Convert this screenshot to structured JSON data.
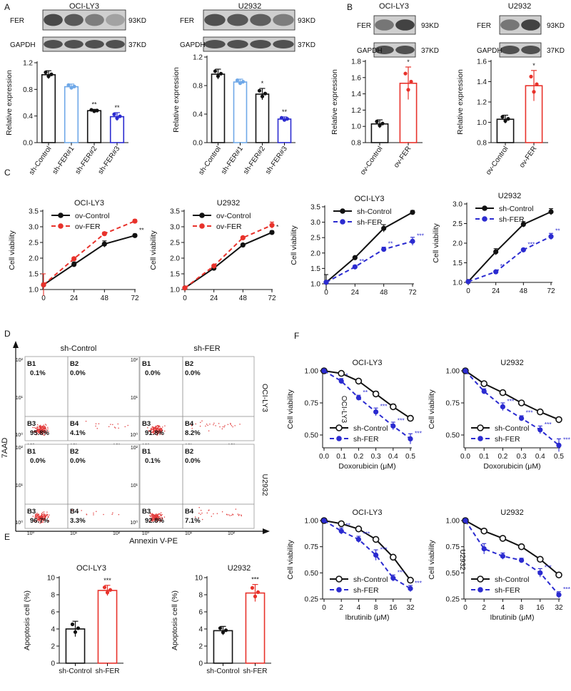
{
  "panels": {
    "A": {
      "letter": "A",
      "blots": [
        {
          "title": "OCI-LY3",
          "fer_label": "FER",
          "gapdh_label": "GAPDH",
          "fer_kd": "93KD",
          "gapdh_kd": "37KD"
        },
        {
          "title": "U2932",
          "fer_label": "FER",
          "gapdh_label": "GAPDH",
          "fer_kd": "93KD",
          "gapdh_kd": "37KD"
        }
      ]
    },
    "B": {
      "letter": "B",
      "blots": [
        {
          "title": "OCI-LY3",
          "fer_label": "FER",
          "gapdh_label": "GAPDH",
          "fer_kd": "93KD",
          "gapdh_kd": "37KD"
        },
        {
          "title": "U2932",
          "fer_label": "FER",
          "gapdh_label": "GAPDH",
          "fer_kd": "93KD",
          "gapdh_kd": "37KD"
        }
      ]
    },
    "C": {
      "letter": "C"
    },
    "D": {
      "letter": "D",
      "col_titles": [
        "sh-Control",
        "sh-FER"
      ],
      "row_labels": [
        "OCI-LY3",
        "U2932"
      ],
      "y_axis_label": "7AAD",
      "x_axis_label": "Annexin V-PE",
      "tick_labels": [
        "10⁰",
        "10¹",
        "10²"
      ],
      "quadrants": [
        {
          "cell": "OCI-LY3 sh-Control",
          "B1": "0.1%",
          "B2": "0.0%",
          "B3": "95.8%",
          "B4": "4.1%"
        },
        {
          "cell": "OCI-LY3 sh-FER",
          "B1": "0.0%",
          "B2": "0.0%",
          "B3": "91.8%",
          "B4": "8.2%"
        },
        {
          "cell": "U2932 sh-Control",
          "B1": "0.0%",
          "B2": "0.0%",
          "B3": "96.7%",
          "B4": "3.3%"
        },
        {
          "cell": "U2932 sh-FER",
          "B1": "0.1%",
          "B2": "0.0%",
          "B3": "92.8%",
          "B4": "7.1%"
        }
      ],
      "quad_names": [
        "B1",
        "B2",
        "B3",
        "B4"
      ]
    },
    "E": {
      "letter": "E"
    },
    "F": {
      "letter": "F"
    }
  },
  "colors": {
    "black": "#111111",
    "lightblue": "#6fa8e8",
    "blue": "#2b2bd0",
    "red": "#e8322b",
    "dots": "#e23a3a",
    "blot_bg": "#cfcfcf",
    "band": "#3a3a3a"
  },
  "chart_data": [
    {
      "id": "A1",
      "type": "bar",
      "title": "",
      "ylabel": "Relative expression",
      "ylim": [
        0,
        1.2
      ],
      "yticks": [
        "0.0",
        "0.4",
        "0.8",
        "1.2"
      ],
      "categories": [
        "sh-Control",
        "sh-FER#1",
        "sh-FER#2",
        "sh-FER#3"
      ],
      "values": [
        1.02,
        0.84,
        0.48,
        0.39
      ],
      "errors": [
        0.06,
        0.04,
        0.02,
        0.06
      ],
      "sig": [
        "",
        "",
        "**",
        "**"
      ],
      "colors": [
        "#111111",
        "#6fa8e8",
        "#111111",
        "#2b2bd0"
      ]
    },
    {
      "id": "A2",
      "type": "bar",
      "title": "",
      "ylabel": "Relative expression",
      "ylim": [
        0,
        1.2
      ],
      "yticks": [
        "0.0",
        "0.4",
        "0.8",
        "1.2"
      ],
      "categories": [
        "sh-Control",
        "sh-FER#1",
        "sh-FER#2",
        "sh-FER#3"
      ],
      "values": [
        0.96,
        0.85,
        0.68,
        0.33
      ],
      "errors": [
        0.07,
        0.04,
        0.08,
        0.03
      ],
      "sig": [
        "",
        "",
        "*",
        "**"
      ],
      "colors": [
        "#111111",
        "#6fa8e8",
        "#111111",
        "#2b2bd0"
      ]
    },
    {
      "id": "B1",
      "type": "bar",
      "title": "",
      "ylabel": "Relative expression",
      "ylim": [
        0.8,
        1.8
      ],
      "yticks": [
        "0.8",
        "1.0",
        "1.2",
        "1.4",
        "1.6",
        "1.8"
      ],
      "categories": [
        "ov-Control",
        "ov-FER"
      ],
      "values": [
        1.03,
        1.53
      ],
      "errors": [
        0.05,
        0.2
      ],
      "sig": [
        "",
        "*"
      ],
      "colors": [
        "#111111",
        "#e8322b"
      ]
    },
    {
      "id": "B2",
      "type": "bar",
      "title": "",
      "ylabel": "Relative expression",
      "ylim": [
        0.8,
        1.6
      ],
      "yticks": [
        "0.8",
        "1.0",
        "1.2",
        "1.4",
        "1.6"
      ],
      "categories": [
        "ov-Control",
        "ov-FER"
      ],
      "values": [
        1.03,
        1.36
      ],
      "errors": [
        0.04,
        0.15
      ],
      "sig": [
        "",
        "*"
      ],
      "colors": [
        "#111111",
        "#e8322b"
      ]
    },
    {
      "id": "C1",
      "type": "line",
      "title": "OCI-LY3",
      "xlabel": "",
      "ylabel": "Cell viability",
      "x": [
        0,
        24,
        48,
        72
      ],
      "xticks": [
        "0",
        "24",
        "48",
        "72"
      ],
      "ylim": [
        1.0,
        3.5
      ],
      "yticks": [
        "1.0",
        "1.5",
        "2.0",
        "2.5",
        "3.0",
        "3.5"
      ],
      "legend_pos": "top-left",
      "series": [
        {
          "name": "ov-Control",
          "values": [
            1.15,
            1.8,
            2.45,
            2.72
          ],
          "errors": [
            0.05,
            0.08,
            0.1,
            0.05
          ],
          "color": "#111111",
          "dash": false,
          "marker": "filled",
          "sig": [
            "",
            "",
            "",
            "**"
          ]
        },
        {
          "name": "ov-FER",
          "values": [
            1.15,
            1.98,
            2.78,
            3.18
          ],
          "errors": [
            0.35,
            0.05,
            0.05,
            0.05
          ],
          "color": "#e8322b",
          "dash": true,
          "marker": "filled",
          "sig": [
            "",
            "",
            "",
            ""
          ]
        }
      ]
    },
    {
      "id": "C2",
      "type": "line",
      "title": "U2932",
      "xlabel": "",
      "ylabel": "Cell viability",
      "x": [
        0,
        24,
        48,
        72
      ],
      "xticks": [
        "0",
        "24",
        "48",
        "72"
      ],
      "ylim": [
        1.0,
        3.5
      ],
      "yticks": [
        "1.0",
        "1.5",
        "2.0",
        "2.5",
        "3.0",
        "3.5"
      ],
      "legend_pos": "top-left",
      "series": [
        {
          "name": "ov-Control",
          "values": [
            1.05,
            1.68,
            2.42,
            2.82
          ],
          "errors": [
            0.03,
            0.04,
            0.04,
            0.05
          ],
          "color": "#111111",
          "dash": false,
          "marker": "filled",
          "sig": [
            "",
            "",
            "",
            "*"
          ]
        },
        {
          "name": "ov-FER",
          "values": [
            1.05,
            1.75,
            2.65,
            3.05
          ],
          "errors": [
            0.03,
            0.04,
            0.04,
            0.1
          ],
          "color": "#e8322b",
          "dash": true,
          "marker": "filled",
          "sig": [
            "",
            "",
            "",
            ""
          ]
        }
      ]
    },
    {
      "id": "C3",
      "type": "line",
      "title": "OCI-LY3",
      "xlabel": "",
      "ylabel": "Cell viability",
      "x": [
        0,
        24,
        48,
        72
      ],
      "xticks": [
        "0",
        "24",
        "48",
        "72"
      ],
      "ylim": [
        1.0,
        3.5
      ],
      "yticks": [
        "1.0",
        "1.5",
        "2.0",
        "2.5",
        "3.0",
        "3.5"
      ],
      "legend_pos": "top-left",
      "series": [
        {
          "name": "sh-Control",
          "values": [
            1.05,
            1.85,
            2.8,
            3.32
          ],
          "errors": [
            0.25,
            0.03,
            0.12,
            0.06
          ],
          "color": "#111111",
          "dash": false,
          "marker": "filled",
          "sig": [
            "",
            "",
            "",
            ""
          ]
        },
        {
          "name": "sh-FER",
          "values": [
            1.05,
            1.55,
            2.12,
            2.38
          ],
          "errors": [
            0.03,
            0.05,
            0.07,
            0.13
          ],
          "color": "#2b2bd0",
          "dash": true,
          "marker": "filled",
          "sig": [
            "",
            "**",
            "**",
            "***"
          ]
        }
      ]
    },
    {
      "id": "C4",
      "type": "line",
      "title": "U2932",
      "xlabel": "",
      "ylabel": "Cell viability",
      "x": [
        0,
        24,
        48,
        72
      ],
      "xticks": [
        "0",
        "24",
        "48",
        "72"
      ],
      "ylim": [
        1.0,
        3.0
      ],
      "yticks": [
        "1.0",
        "1.5",
        "2.0",
        "2.5",
        "3.0"
      ],
      "legend_pos": "top-left",
      "series": [
        {
          "name": "sh-Control",
          "values": [
            1.02,
            1.78,
            2.48,
            2.8
          ],
          "errors": [
            0.02,
            0.08,
            0.07,
            0.08
          ],
          "color": "#111111",
          "dash": false,
          "marker": "filled",
          "sig": [
            "",
            "",
            "",
            ""
          ]
        },
        {
          "name": "sh-FER",
          "values": [
            1.02,
            1.27,
            1.83,
            2.17
          ],
          "errors": [
            0.02,
            0.03,
            0.03,
            0.08
          ],
          "color": "#2b2bd0",
          "dash": true,
          "marker": "filled",
          "sig": [
            "",
            "**",
            "***",
            "**"
          ]
        }
      ]
    },
    {
      "id": "E1",
      "type": "bar",
      "title": "OCI-LY3",
      "ylabel": "Apoptosis cell (%)",
      "ylim": [
        0,
        10
      ],
      "yticks": [
        "0",
        "2",
        "4",
        "6",
        "8",
        "10"
      ],
      "categories": [
        "sh-Control",
        "sh-FER"
      ],
      "values": [
        4.0,
        8.5
      ],
      "errors": [
        0.9,
        0.6
      ],
      "sig": [
        "",
        "***"
      ],
      "colors": [
        "#111111",
        "#e8322b"
      ]
    },
    {
      "id": "E2",
      "type": "bar",
      "title": "U2932",
      "ylabel": "Apoptosis cell (%)",
      "ylim": [
        0,
        10
      ],
      "yticks": [
        "0",
        "2",
        "4",
        "6",
        "8",
        "10"
      ],
      "categories": [
        "sh-Control",
        "sh-FER"
      ],
      "values": [
        3.8,
        8.2
      ],
      "errors": [
        0.5,
        1.0
      ],
      "sig": [
        "",
        "***"
      ],
      "colors": [
        "#111111",
        "#e8322b"
      ]
    },
    {
      "id": "F1",
      "type": "line",
      "title": "OCI-LY3",
      "xlabel": "Doxorubicin (μM)",
      "ylabel": "Cell viability",
      "side_label": "OCI-LY3",
      "x": [
        0,
        0.1,
        0.2,
        0.3,
        0.4,
        0.5
      ],
      "xticks": [
        "0.0",
        "0.1",
        "0.2",
        "0.3",
        "0.4",
        "0.5"
      ],
      "ylim": [
        0.4,
        1.0
      ],
      "yticks": [
        "0.50",
        "0.75",
        "1.00"
      ],
      "legend_pos": "bottom-left",
      "series": [
        {
          "name": "sh-Control",
          "values": [
            1.0,
            0.98,
            0.92,
            0.82,
            0.72,
            0.63
          ],
          "errors": [
            0,
            0.01,
            0.01,
            0.02,
            0.02,
            0.02
          ],
          "color": "#111111",
          "dash": false,
          "marker": "open",
          "sig": [
            "",
            "",
            "",
            "",
            "",
            ""
          ]
        },
        {
          "name": "sh-FER",
          "values": [
            1.0,
            0.92,
            0.79,
            0.68,
            0.57,
            0.47
          ],
          "errors": [
            0,
            0.02,
            0.02,
            0.03,
            0.03,
            0.04
          ],
          "color": "#2b2bd0",
          "dash": true,
          "marker": "filled",
          "sig": [
            "",
            "*",
            "**",
            "***",
            "***",
            "***"
          ]
        }
      ]
    },
    {
      "id": "F2",
      "type": "line",
      "title": "U2932",
      "xlabel": "Doxorubicin (μM)",
      "ylabel": "Cell viability",
      "side_label": "",
      "x": [
        0,
        0.1,
        0.2,
        0.3,
        0.4,
        0.5
      ],
      "xticks": [
        "0.0",
        "0.1",
        "0.2",
        "0.3",
        "0.4",
        "0.5"
      ],
      "ylim": [
        0.4,
        1.0
      ],
      "yticks": [
        "0.50",
        "0.75",
        "1.00"
      ],
      "legend_pos": "bottom-left",
      "series": [
        {
          "name": "sh-Control",
          "values": [
            1.0,
            0.9,
            0.83,
            0.75,
            0.68,
            0.62
          ],
          "errors": [
            0,
            0.01,
            0.01,
            0.01,
            0.01,
            0.01
          ],
          "color": "#111111",
          "dash": false,
          "marker": "open",
          "sig": [
            "",
            "",
            "",
            "",
            "",
            ""
          ]
        },
        {
          "name": "sh-FER",
          "values": [
            1.0,
            0.84,
            0.72,
            0.63,
            0.54,
            0.42
          ],
          "errors": [
            0,
            0.02,
            0.03,
            0.02,
            0.03,
            0.05
          ],
          "color": "#2b2bd0",
          "dash": true,
          "marker": "filled",
          "sig": [
            "",
            "",
            "***",
            "***",
            "***",
            "***"
          ]
        }
      ]
    },
    {
      "id": "F3",
      "type": "line",
      "title": "OCI-LY3",
      "xlabel": "Ibrutinib (μM)",
      "ylabel": "Cell viability",
      "side_label": "",
      "x": [
        0,
        2,
        4,
        8,
        16,
        32
      ],
      "xticks": [
        "0",
        "2",
        "4",
        "8",
        "16",
        "32"
      ],
      "ylim": [
        0.25,
        1.0
      ],
      "yticks": [
        "0.25",
        "0.50",
        "0.75",
        "1.00"
      ],
      "legend_pos": "bottom-left",
      "series": [
        {
          "name": "sh-Control",
          "values": [
            1.0,
            0.97,
            0.92,
            0.82,
            0.65,
            0.43
          ],
          "errors": [
            0,
            0.01,
            0.01,
            0.02,
            0.02,
            0.02
          ],
          "color": "#111111",
          "dash": false,
          "marker": "open",
          "sig": [
            "",
            "",
            "",
            "",
            "",
            ""
          ]
        },
        {
          "name": "sh-FER",
          "values": [
            1.0,
            0.9,
            0.82,
            0.67,
            0.45,
            0.35
          ],
          "errors": [
            0,
            0.03,
            0.03,
            0.05,
            0.03,
            0.03
          ],
          "color": "#2b2bd0",
          "dash": true,
          "marker": "filled",
          "sig": [
            "",
            "**",
            "***",
            "***",
            "***",
            "***"
          ]
        }
      ]
    },
    {
      "id": "F4",
      "type": "line",
      "title": "U2932",
      "xlabel": "Ibrutinib (μM)",
      "ylabel": "Cell viability",
      "side_label": "U2932",
      "x": [
        0,
        2,
        4,
        8,
        16,
        32
      ],
      "xticks": [
        "0",
        "2",
        "4",
        "8",
        "16",
        "32"
      ],
      "ylim": [
        0.25,
        1.0
      ],
      "yticks": [
        "0.25",
        "0.50",
        "0.75",
        "1.00"
      ],
      "legend_pos": "bottom-left",
      "series": [
        {
          "name": "sh-Control",
          "values": [
            1.0,
            0.9,
            0.83,
            0.75,
            0.63,
            0.48
          ],
          "errors": [
            0,
            0.01,
            0.02,
            0.02,
            0.02,
            0.02
          ],
          "color": "#111111",
          "dash": false,
          "marker": "open",
          "sig": [
            "",
            "",
            "",
            "",
            "",
            ""
          ]
        },
        {
          "name": "sh-FER",
          "values": [
            1.0,
            0.73,
            0.66,
            0.62,
            0.5,
            0.29
          ],
          "errors": [
            0,
            0.05,
            0.03,
            0.02,
            0.04,
            0.03
          ],
          "color": "#2b2bd0",
          "dash": true,
          "marker": "filled",
          "sig": [
            "",
            "",
            "",
            "",
            "***",
            "***"
          ]
        }
      ]
    }
  ]
}
